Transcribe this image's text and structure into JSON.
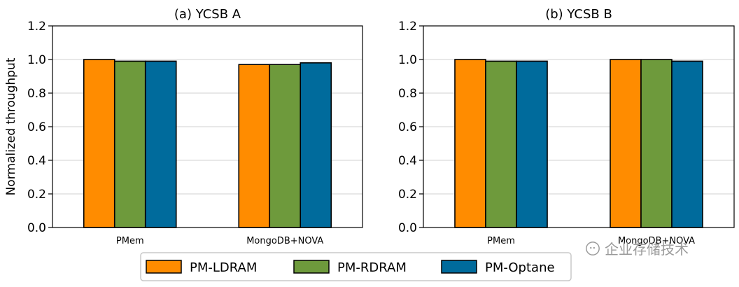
{
  "chart_data": [
    {
      "type": "bar",
      "title": "(a) YCSB A",
      "ylabel": "Normalized throughput",
      "categories": [
        "PMem",
        "MongoDB+NOVA"
      ],
      "ylim": [
        0,
        1.2
      ],
      "yticks": [
        "0.0",
        "0.2",
        "0.4",
        "0.6",
        "0.8",
        "1.0",
        "1.2"
      ],
      "grid": "y",
      "series": [
        {
          "name": "PM-LDRAM",
          "color": "#ff8c00",
          "values": [
            1.0,
            0.97
          ]
        },
        {
          "name": "PM-RDRAM",
          "color": "#6e9a3c",
          "values": [
            0.99,
            0.97
          ]
        },
        {
          "name": "PM-Optane",
          "color": "#006b9c",
          "values": [
            0.99,
            0.98
          ]
        }
      ]
    },
    {
      "type": "bar",
      "title": "(b) YCSB B",
      "ylabel": "",
      "categories": [
        "PMem",
        "MongoDB+NOVA"
      ],
      "ylim": [
        0,
        1.2
      ],
      "yticks": [
        "0.0",
        "0.2",
        "0.4",
        "0.6",
        "0.8",
        "1.0",
        "1.2"
      ],
      "grid": "y",
      "series": [
        {
          "name": "PM-LDRAM",
          "color": "#ff8c00",
          "values": [
            1.0,
            1.0
          ]
        },
        {
          "name": "PM-RDRAM",
          "color": "#6e9a3c",
          "values": [
            0.99,
            1.0
          ]
        },
        {
          "name": "PM-Optane",
          "color": "#006b9c",
          "values": [
            0.99,
            0.99
          ]
        }
      ]
    }
  ],
  "legend": {
    "placement": "bottom-center",
    "entries": [
      {
        "label": "PM-LDRAM",
        "color": "#ff8c00"
      },
      {
        "label": "PM-RDRAM",
        "color": "#6e9a3c"
      },
      {
        "label": "PM-Optane",
        "color": "#006b9c"
      }
    ]
  },
  "watermark": {
    "text": "企业存储技术",
    "icon": "wechat-icon"
  }
}
